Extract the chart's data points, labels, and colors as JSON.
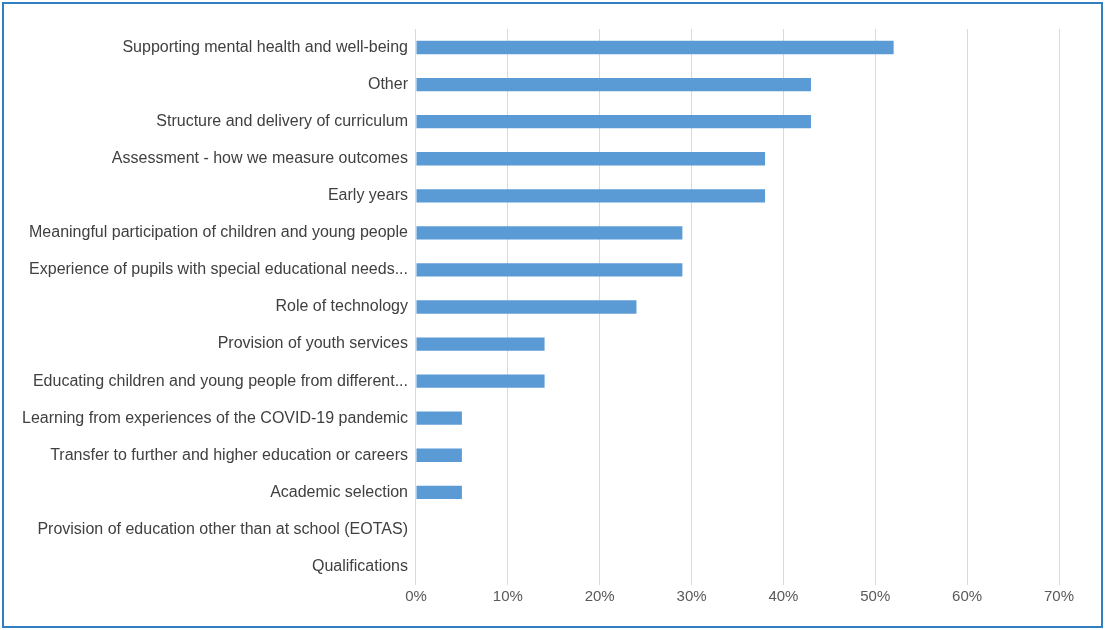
{
  "chart_data": {
    "type": "bar",
    "orientation": "horizontal",
    "categories": [
      "Supporting mental health and well-being",
      "Other",
      "Structure and delivery of curriculum",
      "Assessment - how we measure outcomes",
      "Early years",
      "Meaningful participation of children and young people",
      "Experience of pupils with special educational needs...",
      "Role of technology",
      "Provision of youth services",
      "Educating children and young people from different...",
      "Learning from experiences of the COVID-19 pandemic",
      "Transfer to further and higher education or careers",
      "Academic selection",
      "Provision of education other than at school (EOTAS)",
      "Qualifications"
    ],
    "values": [
      52,
      43,
      43,
      38,
      38,
      29,
      29,
      24,
      14,
      14,
      5,
      5,
      5,
      0,
      0
    ],
    "color": "#5b9bd5",
    "xlim": [
      0,
      70
    ],
    "xticks": [
      {
        "value": 0,
        "label": "0%"
      },
      {
        "value": 10,
        "label": "10%"
      },
      {
        "value": 20,
        "label": "20%"
      },
      {
        "value": 30,
        "label": "30%"
      },
      {
        "value": 40,
        "label": "40%"
      },
      {
        "value": 50,
        "label": "50%"
      },
      {
        "value": 60,
        "label": "60%"
      },
      {
        "value": 70,
        "label": "70%"
      }
    ],
    "grid": "x",
    "legend": false
  }
}
